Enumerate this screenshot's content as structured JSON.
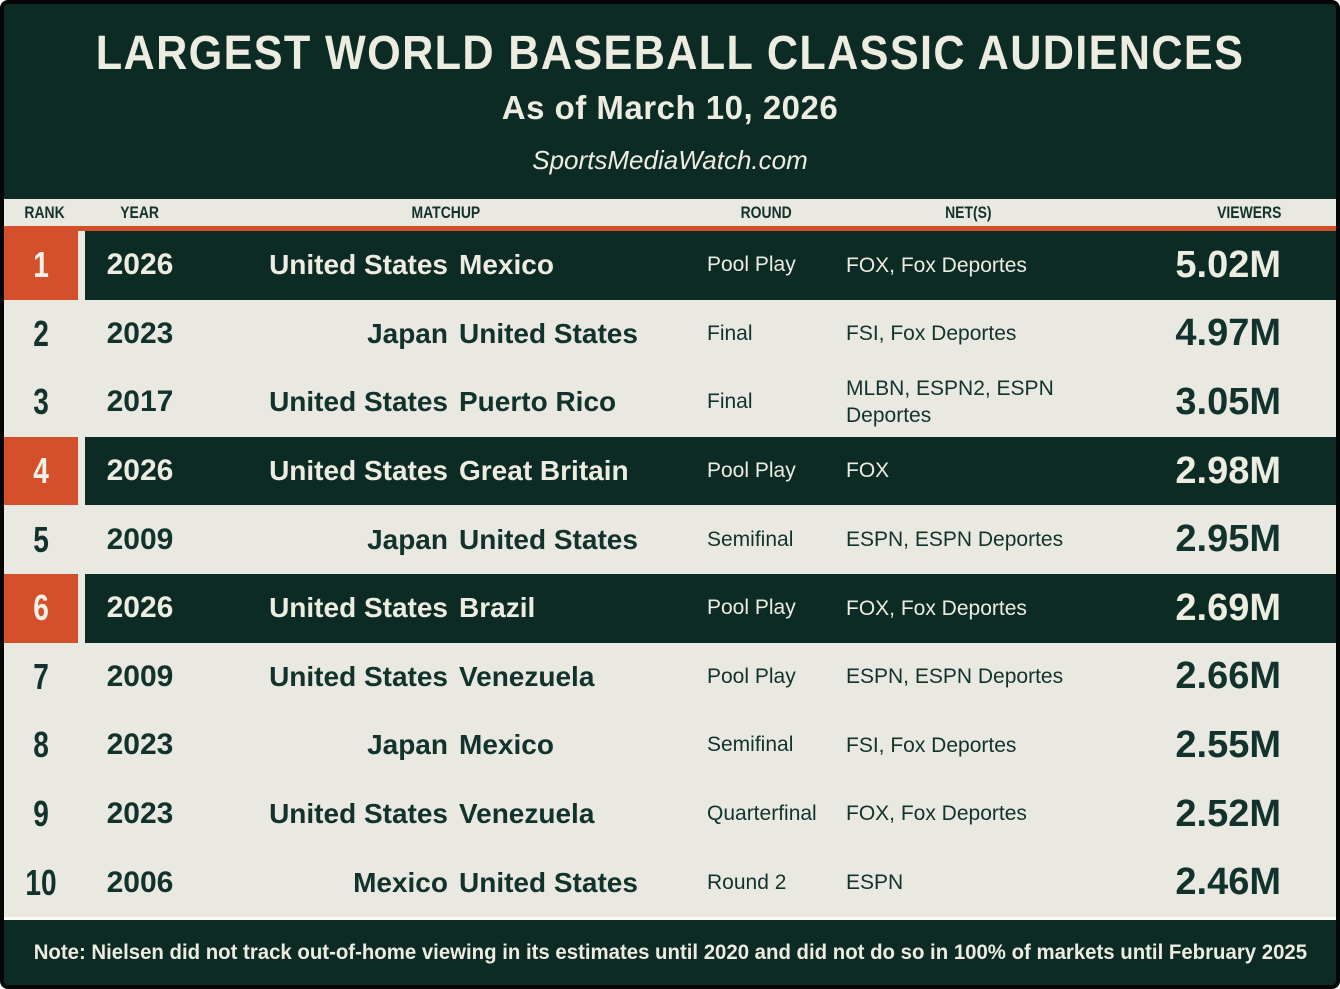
{
  "colors": {
    "dark_green": "#0d2b25",
    "cream": "#e9e8e1",
    "orange_accent": "#d4502a",
    "text_light": "#edece1",
    "text_dark": "#11332b"
  },
  "chart_data": {
    "type": "table",
    "title": "LARGEST WORLD BASEBALL CLASSIC AUDIENCES",
    "subtitle": "As of March 10, 2026",
    "source": "SportsMediaWatch.com",
    "columns": [
      "RANK",
      "YEAR",
      "MATCHUP",
      "ROUND",
      "NET(S)",
      "VIEWERS"
    ],
    "highlighted_ranks": [
      1,
      4,
      6
    ],
    "rows": [
      {
        "rank": "1",
        "year": "2026",
        "team1": "United States",
        "team2": "Mexico",
        "round": "Pool Play",
        "nets": "FOX, Fox Deportes",
        "viewers": "5.02M",
        "viewers_millions": 5.02,
        "highlight": true
      },
      {
        "rank": "2",
        "year": "2023",
        "team1": "Japan",
        "team2": "United States",
        "round": "Final",
        "nets": "FSI, Fox Deportes",
        "viewers": "4.97M",
        "viewers_millions": 4.97,
        "highlight": false
      },
      {
        "rank": "3",
        "year": "2017",
        "team1": "United States",
        "team2": "Puerto Rico",
        "round": "Final",
        "nets": "MLBN, ESPN2, ESPN Deportes",
        "viewers": "3.05M",
        "viewers_millions": 3.05,
        "highlight": false
      },
      {
        "rank": "4",
        "year": "2026",
        "team1": "United States",
        "team2": "Great Britain",
        "round": "Pool Play",
        "nets": "FOX",
        "viewers": "2.98M",
        "viewers_millions": 2.98,
        "highlight": true
      },
      {
        "rank": "5",
        "year": "2009",
        "team1": "Japan",
        "team2": "United States",
        "round": "Semifinal",
        "nets": "ESPN, ESPN Deportes",
        "viewers": "2.95M",
        "viewers_millions": 2.95,
        "highlight": false
      },
      {
        "rank": "6",
        "year": "2026",
        "team1": "United States",
        "team2": "Brazil",
        "round": "Pool Play",
        "nets": "FOX, Fox Deportes",
        "viewers": "2.69M",
        "viewers_millions": 2.69,
        "highlight": true
      },
      {
        "rank": "7",
        "year": "2009",
        "team1": "United States",
        "team2": "Venezuela",
        "round": "Pool Play",
        "nets": "ESPN, ESPN Deportes",
        "viewers": "2.66M",
        "viewers_millions": 2.66,
        "highlight": false
      },
      {
        "rank": "8",
        "year": "2023",
        "team1": "Japan",
        "team2": "Mexico",
        "round": "Semifinal",
        "nets": "FSI, Fox Deportes",
        "viewers": "2.55M",
        "viewers_millions": 2.55,
        "highlight": false
      },
      {
        "rank": "9",
        "year": "2023",
        "team1": "United States",
        "team2": "Venezuela",
        "round": "Quarterfinal",
        "nets": "FOX, Fox Deportes",
        "viewers": "2.52M",
        "viewers_millions": 2.52,
        "highlight": false
      },
      {
        "rank": "10",
        "year": "2006",
        "team1": "Mexico",
        "team2": "United States",
        "round": "Round 2",
        "nets": "ESPN",
        "viewers": "2.46M",
        "viewers_millions": 2.46,
        "highlight": false
      }
    ],
    "note": "Note: Nielsen did not track out-of-home viewing in its estimates until 2020 and did not do so in 100% of markets until February 2025"
  }
}
